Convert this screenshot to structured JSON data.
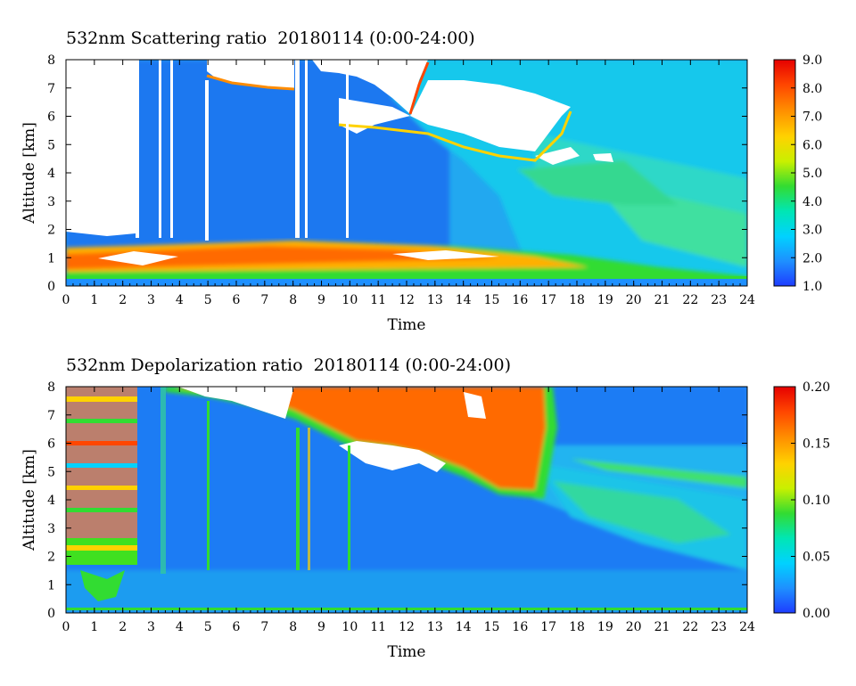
{
  "chart_data": [
    {
      "type": "heatmap",
      "title": "532nm Scattering ratio  20180114 (0:00-24:00)",
      "xlabel": "Time",
      "ylabel": "Altitude [km]",
      "xlim": [
        0,
        24
      ],
      "ylim": [
        0,
        8
      ],
      "x_ticks": [
        "0",
        "1",
        "2",
        "3",
        "4",
        "5",
        "6",
        "7",
        "8",
        "9",
        "10",
        "11",
        "12",
        "13",
        "14",
        "15",
        "16",
        "17",
        "18",
        "19",
        "20",
        "21",
        "22",
        "23",
        "24"
      ],
      "y_ticks": [
        "0",
        "1",
        "2",
        "3",
        "4",
        "5",
        "6",
        "7",
        "8"
      ],
      "colorbar": {
        "min": 1.0,
        "max": 9.0,
        "ticks": [
          "1.0",
          "2.0",
          "3.0",
          "4.0",
          "5.0",
          "6.0",
          "7.0",
          "8.0",
          "9.0"
        ],
        "colors": [
          "#1e3cff",
          "#1e90ff",
          "#00d2ff",
          "#00e6b4",
          "#32dc32",
          "#c8f000",
          "#ffd200",
          "#ff8c00",
          "#ff4600",
          "#e60000"
        ]
      },
      "features": [
        {
          "name": "cirrus cloud (saturated, white)",
          "x_range": [
            8.2,
            18.6
          ],
          "y_range": [
            4.2,
            8.0
          ]
        },
        {
          "name": "no-data region (white)",
          "x_range": [
            0.0,
            2.4
          ],
          "y_range": [
            1.8,
            8.0
          ]
        },
        {
          "name": "boundary layer aerosol (high ratio)",
          "x_range": [
            0.0,
            21.0
          ],
          "y_range": [
            0.4,
            1.6
          ]
        }
      ]
    },
    {
      "type": "heatmap",
      "title": "532nm Depolarization ratio  20180114 (0:00-24:00)",
      "xlabel": "Time",
      "ylabel": "Altitude [km]",
      "xlim": [
        0,
        24
      ],
      "ylim": [
        0,
        8
      ],
      "x_ticks": [
        "0",
        "1",
        "2",
        "3",
        "4",
        "5",
        "6",
        "7",
        "8",
        "9",
        "10",
        "11",
        "12",
        "13",
        "14",
        "15",
        "16",
        "17",
        "18",
        "19",
        "20",
        "21",
        "22",
        "23",
        "24"
      ],
      "y_ticks": [
        "0",
        "1",
        "2",
        "3",
        "4",
        "5",
        "6",
        "7",
        "8"
      ],
      "colorbar": {
        "min": 0.0,
        "max": 0.2,
        "ticks": [
          "0.00",
          "0.05",
          "0.10",
          "0.15",
          "0.20"
        ],
        "colors": [
          "#1e3cff",
          "#1e90ff",
          "#00d2ff",
          "#00e6b4",
          "#32dc32",
          "#c8f000",
          "#ffd200",
          "#ff8c00",
          "#ff4600",
          "#e60000"
        ]
      },
      "features": [
        {
          "name": "ice cloud (high depolarization)",
          "x_range": [
            7.8,
            17.2
          ],
          "y_range": [
            4.2,
            8.0
          ]
        },
        {
          "name": "noisy region",
          "x_range": [
            0.0,
            2.5
          ],
          "y_range": [
            1.8,
            8.0
          ]
        }
      ]
    }
  ]
}
